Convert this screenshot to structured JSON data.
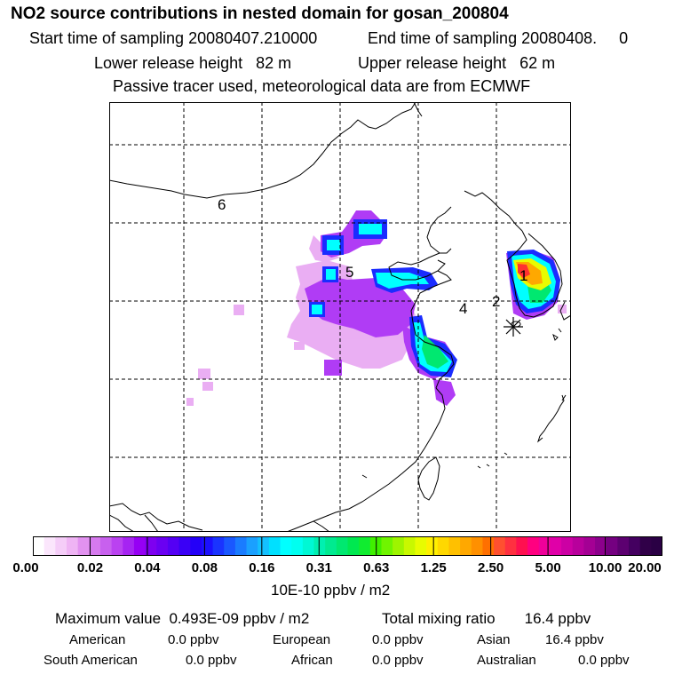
{
  "header": {
    "title": "NO2 source contributions in nested domain for gosan_200804",
    "start_time": "Start time of sampling 20080407.210000",
    "end_time": "End time of sampling 20080408.     0",
    "lower_release": "Lower release height   82 m",
    "upper_release": "Upper release height   62 m",
    "tracer_note": "Passive tracer used, meteorological data are from ECMWF"
  },
  "map": {
    "region_labels": [
      "6",
      "5",
      "4",
      "2",
      "1"
    ],
    "site_marker": "asterisk-icon",
    "colors": {
      "coast": "#000000",
      "grid": "#000000",
      "violet": "#9a00ff",
      "light_violet": "#d877f0",
      "blue": "#2040ff",
      "cyan": "#00ffff",
      "green": "#00e060",
      "yellow": "#ffef00",
      "orange": "#ff9b00",
      "red": "#ff3030"
    }
  },
  "colorbar": {
    "ticks": [
      "0.00",
      "0.02",
      "0.04",
      "0.08",
      "0.16",
      "0.31",
      "0.63",
      "1.25",
      "2.50",
      "5.00",
      "10.00",
      "20.00"
    ],
    "colors": [
      "#ffffff",
      "#fbe6fc",
      "#f5cdf8",
      "#efb4f4",
      "#e292f0",
      "#d67aee",
      "#c860ee",
      "#ba42f0",
      "#a624f2",
      "#9600f4",
      "#7e00f0",
      "#6a00f2",
      "#5400f4",
      "#3a00f6",
      "#2400f8",
      "#1c10ff",
      "#1a34ff",
      "#1a58ff",
      "#1a7cff",
      "#1aa0ff",
      "#14c0ff",
      "#00e0ff",
      "#00ffff",
      "#00fff0",
      "#00f8d4",
      "#00f0b0",
      "#00ea90",
      "#00e870",
      "#00e850",
      "#10ec30",
      "#40f000",
      "#70f400",
      "#9ef400",
      "#c8f800",
      "#e8fc00",
      "#fff000",
      "#ffd800",
      "#ffc000",
      "#ffa800",
      "#ff9000",
      "#ff7000",
      "#ff5030",
      "#ff3040",
      "#ff1050",
      "#ff0080",
      "#f0009a",
      "#e000a8",
      "#cc00a4",
      "#b8009c",
      "#a40094",
      "#8c008c",
      "#740080",
      "#5c0070",
      "#440060",
      "#300048",
      "#2a0044"
    ],
    "units": "10E-10 ppbv / m2"
  },
  "summary": {
    "max_value": "Maximum value  0.493E-09 ppbv / m2",
    "total_mixing": "Total mixing ratio       16.4 ppbv",
    "regions": [
      {
        "name": "American",
        "value": "0.0 ppbv"
      },
      {
        "name": "European",
        "value": "0.0 ppbv"
      },
      {
        "name": "Asian",
        "value": "16.4 ppbv"
      },
      {
        "name": "South American",
        "value": "0.0 ppbv"
      },
      {
        "name": "African",
        "value": "0.0 ppbv"
      },
      {
        "name": "Australian",
        "value": "0.0 ppbv"
      }
    ]
  }
}
